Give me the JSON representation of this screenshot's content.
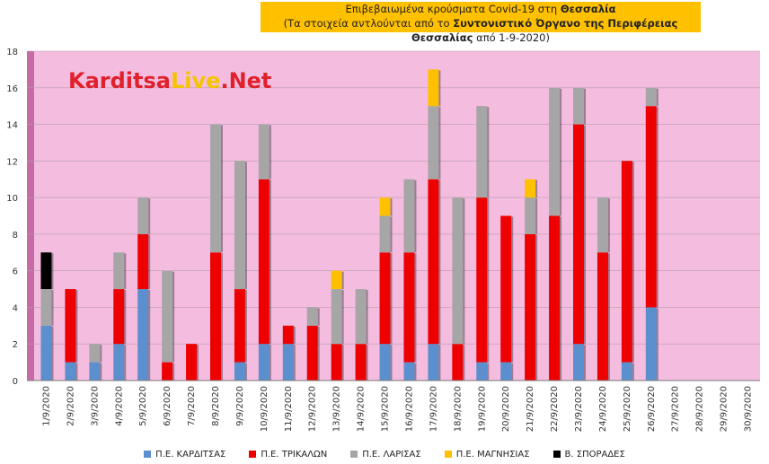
{
  "title": {
    "line1_prefix": "Επιβεβαιωμένα κρούσματα Covid-19 στη ",
    "line1_bold": "Θεσσαλία",
    "line2_prefix": "(Τα στοιχεία αντλούνται από το ",
    "line2_bold": "Συντονιστικό Όργανο της Περιφέρειας Θεσσαλίας",
    "line2_suffix": " από 1-9-2020)"
  },
  "watermark": {
    "part1": "Karditsa",
    "part2": "Live",
    "part3": ".Net"
  },
  "colors": {
    "plot_bg": "#f4bde0",
    "left_strip": "#c66aa8",
    "grid": "#b89aae",
    "karditsa": "#5b8fce",
    "trikala": "#ee0000",
    "larisa": "#a6a6a6",
    "magnisia": "#ffc000",
    "sporades": "#000000"
  },
  "chart_data": {
    "type": "bar",
    "stacked": true,
    "categories": [
      "1/9/2020",
      "2/9/2020",
      "3/9/2020",
      "4/9/2020",
      "5/9/2020",
      "6/9/2020",
      "7/9/2020",
      "8/9/2020",
      "9/9/2020",
      "10/9/2020",
      "11/9/2020",
      "12/9/2020",
      "13/9/2020",
      "14/9/2020",
      "15/9/2020",
      "16/9/2020",
      "17/9/2020",
      "18/9/2020",
      "19/9/2020",
      "20/9/2020",
      "21/9/2020",
      "22/9/2020",
      "23/9/2020",
      "24/9/2020",
      "25/9/2020",
      "26/9/2020",
      "27/9/2020",
      "28/9/2020",
      "29/9/2020",
      "30/9/2020"
    ],
    "series": [
      {
        "name": "Π.Ε. ΚΑΡΔΙΤΣΑΣ",
        "color": "#5b8fce",
        "values": [
          3,
          1,
          1,
          2,
          5,
          0,
          0,
          0,
          1,
          2,
          2,
          0,
          0,
          0,
          2,
          1,
          2,
          0,
          1,
          1,
          0,
          0,
          2,
          0,
          1,
          4,
          0,
          0,
          0,
          0
        ]
      },
      {
        "name": "Π.Ε. ΤΡΙΚΑΛΩΝ",
        "color": "#ee0000",
        "values": [
          0,
          4,
          0,
          3,
          3,
          1,
          2,
          7,
          4,
          9,
          1,
          3,
          2,
          2,
          5,
          6,
          9,
          2,
          9,
          8,
          8,
          9,
          12,
          7,
          11,
          11,
          0,
          0,
          0,
          0
        ]
      },
      {
        "name": "Π.Ε. ΛΑΡΙΣΑΣ",
        "color": "#a6a6a6",
        "values": [
          2,
          0,
          1,
          2,
          2,
          5,
          0,
          7,
          7,
          3,
          0,
          1,
          3,
          3,
          2,
          4,
          4,
          8,
          5,
          0,
          2,
          7,
          2,
          3,
          0,
          1,
          0,
          0,
          0,
          0
        ]
      },
      {
        "name": "Π.Ε. ΜΑΓΝΗΣΙΑΣ",
        "color": "#ffc000",
        "values": [
          0,
          0,
          0,
          0,
          0,
          0,
          0,
          0,
          0,
          0,
          0,
          0,
          1,
          0,
          1,
          0,
          2,
          0,
          0,
          0,
          1,
          0,
          0,
          0,
          0,
          0,
          0,
          0,
          0,
          0
        ]
      },
      {
        "name": "Β. ΣΠΟΡΑΔΕΣ",
        "color": "#000000",
        "values": [
          2,
          0,
          0,
          0,
          0,
          0,
          0,
          0,
          0,
          0,
          0,
          0,
          0,
          0,
          0,
          0,
          0,
          0,
          0,
          0,
          0,
          0,
          0,
          0,
          0,
          0,
          0,
          0,
          0,
          0
        ]
      }
    ],
    "yticks": [
      "0",
      "2",
      "4",
      "6",
      "8",
      "10",
      "12",
      "14",
      "16",
      "18"
    ],
    "ylim": [
      0,
      18
    ],
    "grid": true,
    "legend_position": "bottom"
  }
}
